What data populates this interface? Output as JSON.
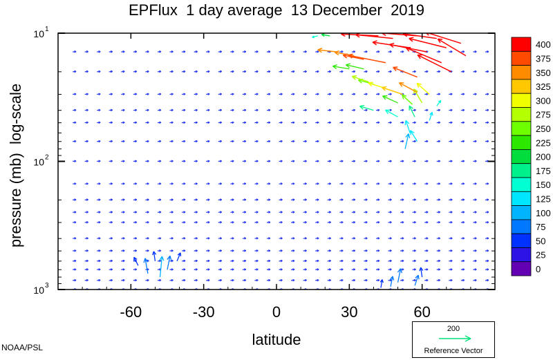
{
  "chart_data": {
    "type": "vector",
    "title": "EPFlux  1 day average  13 December  2019",
    "xlabel": "latitude",
    "ylabel": "pressure (mb)  log-scale",
    "x_range": [
      -90,
      90
    ],
    "y_range": [
      1000,
      10
    ],
    "y_scale": "log",
    "x_ticks": [
      -60,
      -30,
      0,
      30,
      60
    ],
    "x_tick_labels": [
      "-60",
      "-30",
      "0",
      "30",
      "60"
    ],
    "y_ticks": [
      10,
      100,
      1000
    ],
    "y_tick_labels": [
      {
        "base": "10",
        "exp": "1"
      },
      {
        "base": "10",
        "exp": "2"
      },
      {
        "base": "10",
        "exp": "3"
      }
    ],
    "colorbar": {
      "labels": [
        "400",
        "375",
        "350",
        "325",
        "300",
        "275",
        "250",
        "225",
        "200",
        "175",
        "150",
        "125",
        "100",
        "75",
        "50",
        "25",
        "0"
      ],
      "colors": [
        "#ff0000",
        "#ff4a00",
        "#ff8c00",
        "#ffc800",
        "#f0ff00",
        "#b4ff00",
        "#6eff00",
        "#2ce800",
        "#00dd3c",
        "#00f08c",
        "#00ffd2",
        "#00e6ff",
        "#00b4ff",
        "#0078ff",
        "#0032ff",
        "#2d14e6",
        "#6400b4"
      ]
    },
    "reference_vector": {
      "value": "200",
      "label": "Reference Vector"
    },
    "vectors": [
      {
        "lon": -48,
        "p": 800,
        "u": 3,
        "v": -30,
        "m": 100
      },
      {
        "lon": -53,
        "p": 750,
        "u": -4,
        "v": -22,
        "m": 80
      },
      {
        "lon": -57,
        "p": 650,
        "u": -6,
        "v": -12,
        "m": 55
      },
      {
        "lon": -45,
        "p": 700,
        "u": 4,
        "v": -20,
        "m": 70
      },
      {
        "lon": -41,
        "p": 600,
        "u": 5,
        "v": -12,
        "m": 50
      },
      {
        "lon": -50,
        "p": 600,
        "u": -2,
        "v": -14,
        "m": 55
      },
      {
        "lon": 43,
        "p": 970,
        "u": 2,
        "v": -12,
        "m": 60
      },
      {
        "lon": 47,
        "p": 950,
        "u": 3,
        "v": -15,
        "m": 75
      },
      {
        "lon": 50,
        "p": 880,
        "u": 4,
        "v": -20,
        "m": 70
      },
      {
        "lon": 57,
        "p": 930,
        "u": 5,
        "v": -15,
        "m": 65
      },
      {
        "lon": 60,
        "p": 800,
        "u": -2,
        "v": -14,
        "m": 55
      },
      {
        "lon": 53,
        "p": 80,
        "u": 5,
        "v": -22,
        "m": 90
      },
      {
        "lon": 55,
        "p": 60,
        "u": -6,
        "v": -18,
        "m": 130
      },
      {
        "lon": 58,
        "p": 70,
        "u": -10,
        "v": -16,
        "m": 120
      },
      {
        "lon": 50,
        "p": 45,
        "u": -18,
        "v": -10,
        "m": 150
      },
      {
        "lon": 57,
        "p": 45,
        "u": -8,
        "v": -16,
        "m": 170
      },
      {
        "lon": 63,
        "p": 48,
        "u": 4,
        "v": -12,
        "m": 130
      },
      {
        "lon": 40,
        "p": 40,
        "u": -20,
        "v": -6,
        "m": 170
      },
      {
        "lon": 50,
        "p": 35,
        "u": -22,
        "v": -10,
        "m": 230
      },
      {
        "lon": 56,
        "p": 36,
        "u": -15,
        "v": -14,
        "m": 250
      },
      {
        "lon": 60,
        "p": 35,
        "u": -12,
        "v": -20,
        "m": 280
      },
      {
        "lon": 66,
        "p": 37,
        "u": 6,
        "v": -8,
        "m": 150
      },
      {
        "lon": 40,
        "p": 25,
        "u": -22,
        "v": -6,
        "m": 250
      },
      {
        "lon": 45,
        "p": 27,
        "u": -25,
        "v": -8,
        "m": 300
      },
      {
        "lon": 52,
        "p": 30,
        "u": -30,
        "v": -10,
        "m": 320
      },
      {
        "lon": 58,
        "p": 29,
        "u": -26,
        "v": -14,
        "m": 340
      },
      {
        "lon": 63,
        "p": 30,
        "u": -18,
        "v": -16,
        "m": 300
      },
      {
        "lon": 30,
        "p": 19,
        "u": -24,
        "v": -4,
        "m": 220
      },
      {
        "lon": 36,
        "p": 19,
        "u": -26,
        "v": -6,
        "m": 230
      },
      {
        "lon": 38,
        "p": 24,
        "u": -24,
        "v": -8,
        "m": 280
      },
      {
        "lon": 25,
        "p": 14,
        "u": -28,
        "v": -3,
        "m": 350
      },
      {
        "lon": 32,
        "p": 15,
        "u": -28,
        "v": -5,
        "m": 360
      },
      {
        "lon": 36,
        "p": 16,
        "u": -30,
        "v": -6,
        "m": 370
      },
      {
        "lon": 45,
        "p": 17,
        "u": -40,
        "v": -8,
        "m": 380
      },
      {
        "lon": 58,
        "p": 22,
        "u": -35,
        "v": -14,
        "m": 370
      },
      {
        "lon": 48,
        "p": 11,
        "u": -40,
        "v": -4,
        "m": 420
      },
      {
        "lon": 55,
        "p": 13,
        "u": -40,
        "v": -6,
        "m": 420
      },
      {
        "lon": 62,
        "p": 14,
        "u": -40,
        "v": -8,
        "m": 420
      },
      {
        "lon": 68,
        "p": 17,
        "u": -38,
        "v": -16,
        "m": 420
      },
      {
        "lon": 72,
        "p": 20,
        "u": -36,
        "v": -18,
        "m": 410
      },
      {
        "lon": 70,
        "p": 13,
        "u": -40,
        "v": -10,
        "m": 420
      },
      {
        "lon": 76,
        "p": 12,
        "u": -38,
        "v": -12,
        "m": 420
      },
      {
        "lon": 78,
        "p": 15,
        "u": -30,
        "v": -18,
        "m": 410
      },
      {
        "lon": 42,
        "p": 10.5,
        "u": -40,
        "v": -2,
        "m": 420
      },
      {
        "lon": 58,
        "p": 10.5,
        "u": -38,
        "v": -3,
        "m": 420
      },
      {
        "lon": 66,
        "p": 11,
        "u": -36,
        "v": -5,
        "m": 420
      },
      {
        "lon": 22,
        "p": 10.5,
        "u": -12,
        "v": -2,
        "m": 200
      },
      {
        "lon": 17,
        "p": 10.5,
        "u": -8,
        "v": 2,
        "m": 150
      }
    ]
  }
}
